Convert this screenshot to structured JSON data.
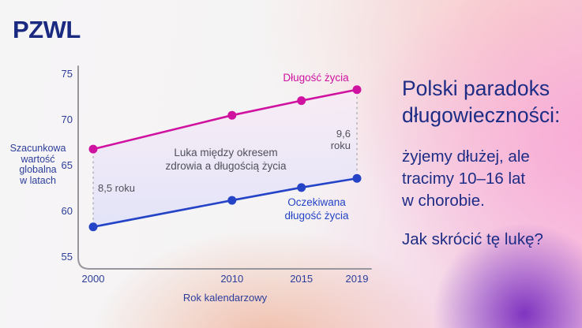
{
  "logo": {
    "text": "PZWL"
  },
  "chart": {
    "y_axis_title": "Szacunkowa\nwartość\nglobalna\nw latach",
    "x_axis_title": "Rok kalendarzowy",
    "series_labels": {
      "life": "Długość życia",
      "healthy": "Oczekiwana\ndługość życia"
    },
    "annotations": {
      "gap_center": "Luka między okresem\nzdrowia a długością życia",
      "gap_2000": "8,5 roku",
      "gap_2019": "9,6 roku"
    }
  },
  "chart_data": {
    "type": "line",
    "x": [
      2000,
      2010,
      2015,
      2019
    ],
    "series": [
      {
        "name": "Długość życia",
        "color": "#cf12a0",
        "values": [
          66.8,
          70.5,
          72.1,
          73.3
        ]
      },
      {
        "name": "Oczekiwana długość życia",
        "color": "#2443c6",
        "values": [
          58.3,
          61.2,
          62.6,
          63.6
        ]
      }
    ],
    "xlabel": "Rok kalendarzowy",
    "ylabel": "Szacunkowa wartość globalna w latach",
    "ylim": [
      55,
      75
    ],
    "yticks": [
      55,
      60,
      65,
      70,
      75
    ],
    "area_between_series": true,
    "gap_at_first_x": "8,5 roku",
    "gap_at_last_x": "9,6 roku",
    "legend_position": "inline-labels",
    "grid": false
  },
  "panel": {
    "heading": "Polski paradoks\ndługowieczności:",
    "body": "żyjemy dłużej, ale\ntracimy 10–16 lat\nw chorobie.",
    "question": "Jak skrócić tę lukę?"
  },
  "colors": {
    "life_line": "#cf12a0",
    "healthy_line": "#2443c6",
    "axis": "#97979d",
    "dashed_connector": "#b4b4ba",
    "navy_text": "#1d2c85",
    "purple_blob": "#7a2cbe"
  }
}
